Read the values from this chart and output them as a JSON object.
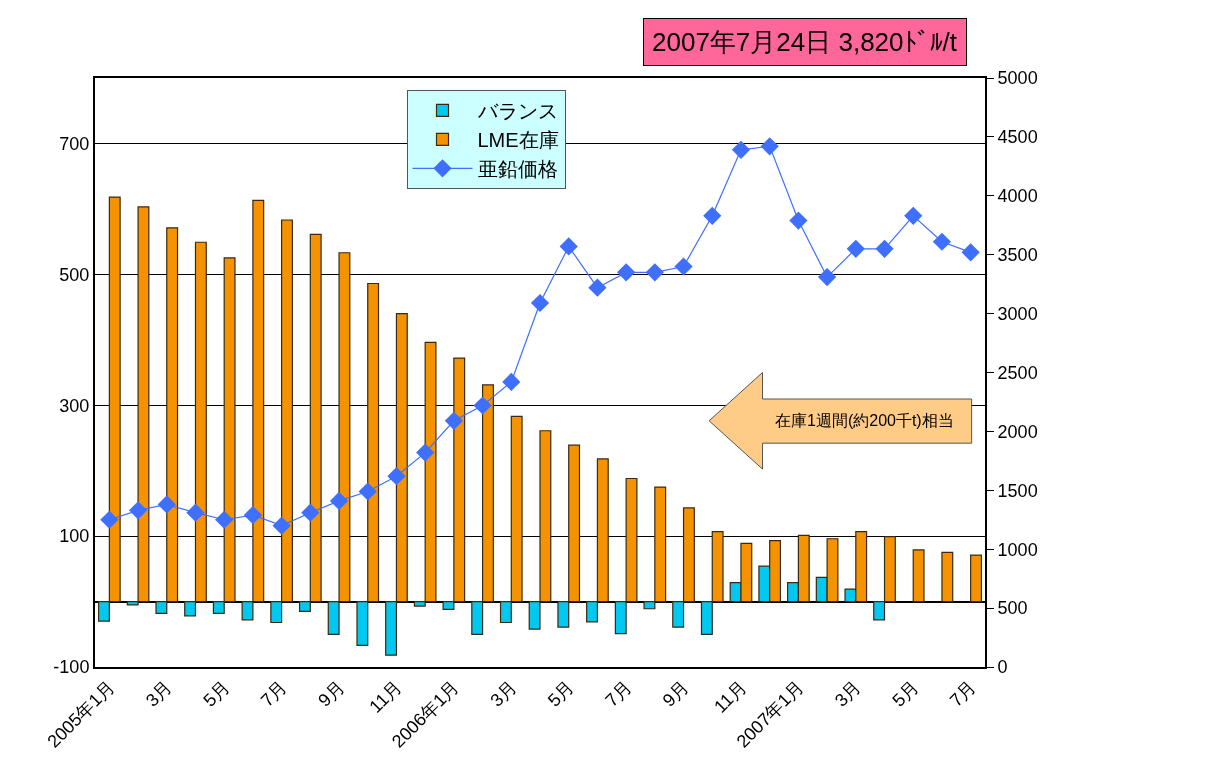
{
  "chart_data": {
    "type": "bar",
    "categories": [
      "2005年1月",
      null,
      "3月",
      null,
      "5月",
      null,
      "7月",
      null,
      "9月",
      null,
      "11月",
      null,
      "2006年1月",
      null,
      "3月",
      null,
      "5月",
      null,
      "7月",
      null,
      "9月",
      null,
      "11月",
      null,
      "2007年1月",
      null,
      "3月",
      null,
      "5月",
      null,
      "7月"
    ],
    "series": [
      {
        "name": "バランス",
        "color": "#00c8f0",
        "values": [
          -30,
          -5,
          -18,
          -22,
          -18,
          -28,
          -32,
          -15,
          -50,
          -67,
          -82,
          -7,
          -12,
          -50,
          -32,
          -42,
          -39,
          -31,
          -49,
          -11,
          -39,
          -50,
          29,
          54,
          29,
          37,
          19,
          -28,
          null,
          null,
          null
        ]
      },
      {
        "name": "LME在庫",
        "color": "#f59200",
        "values": [
          618,
          603,
          571,
          549,
          525,
          613,
          583,
          561,
          533,
          486,
          440,
          396,
          372,
          331,
          283,
          261,
          239,
          218,
          188,
          175,
          143,
          107,
          89,
          93,
          101,
          96,
          107,
          99,
          79,
          75,
          71
        ]
      },
      {
        "name": "亜鉛価格",
        "type": "line",
        "axis": "y2",
        "color": "#3f6fff",
        "values": [
          1250,
          1330,
          1380,
          1310,
          1250,
          1290,
          1200,
          1310,
          1410,
          1490,
          1620,
          1820,
          2090,
          2220,
          2420,
          3090,
          3570,
          3220,
          3350,
          3350,
          3400,
          3830,
          4390,
          4420,
          3790,
          3310,
          3550,
          3550,
          3830,
          3610,
          3520
        ]
      }
    ],
    "ylim": [
      -100,
      800
    ],
    "yticks": [
      -100,
      100,
      300,
      500,
      700
    ],
    "y2lim": [
      0,
      5000
    ],
    "y2ticks": [
      0,
      500,
      1000,
      1500,
      2000,
      2500,
      3000,
      3500,
      4000,
      4500,
      5000
    ],
    "grid": "y",
    "legend": "top",
    "marker": "diamond",
    "line_style": "solid",
    "annotations": [
      "2007年7月24日 3,820ﾄﾞﾙ/t",
      "在庫1週間(約200千t)相当"
    ]
  }
}
